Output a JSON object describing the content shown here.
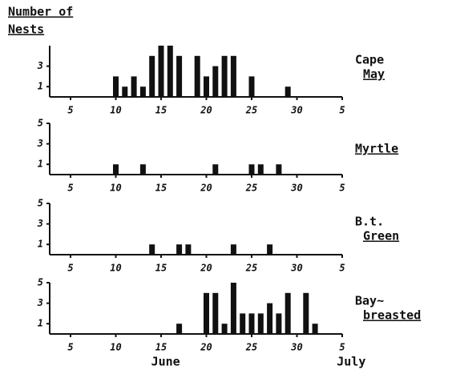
{
  "chart_data": [
    {
      "type": "bar",
      "ylabel": [
        "Number of",
        "Nests"
      ],
      "label": [
        "Cape",
        "May"
      ],
      "color": "#111111",
      "x": [
        10,
        11,
        12,
        13,
        14,
        15,
        16,
        17,
        19,
        20,
        21,
        22,
        23,
        25,
        29
      ],
      "values": [
        2,
        1,
        2,
        1,
        4,
        5,
        5,
        4,
        4,
        2,
        3,
        4,
        4,
        2,
        1
      ],
      "xlim": [
        2.7,
        35
      ],
      "xticks": [
        5,
        10,
        15,
        20,
        25,
        30,
        {
          "value": 35,
          "label": "5"
        }
      ],
      "ylim": [
        0,
        5
      ],
      "yticks": [
        1,
        3
      ]
    },
    {
      "type": "bar",
      "label": [
        "Myrtle"
      ],
      "color": "#111111",
      "x": [
        10,
        13,
        21,
        25,
        26,
        28
      ],
      "values": [
        1,
        1,
        1,
        1,
        1,
        1
      ],
      "xlim": [
        2.7,
        35
      ],
      "xticks": [
        5,
        10,
        15,
        20,
        25,
        30,
        {
          "value": 35,
          "label": "5"
        }
      ],
      "ylim": [
        0,
        5
      ],
      "yticks": [
        1,
        3,
        5
      ]
    },
    {
      "type": "bar",
      "label": [
        "B.t.",
        "Green"
      ],
      "color": "#111111",
      "x": [
        14,
        17,
        18,
        23,
        27
      ],
      "values": [
        1,
        1,
        1,
        1,
        1
      ],
      "xlim": [
        2.7,
        35
      ],
      "xticks": [
        5,
        10,
        15,
        20,
        25,
        30,
        {
          "value": 35,
          "label": "5"
        }
      ],
      "ylim": [
        0,
        5
      ],
      "yticks": [
        1,
        3,
        5
      ]
    },
    {
      "type": "bar",
      "label": [
        "Bay~",
        "breasted"
      ],
      "color": "#111111",
      "x": [
        17,
        20,
        21,
        22,
        23,
        24,
        25,
        26,
        27,
        28,
        29,
        31,
        32
      ],
      "values": [
        1,
        4,
        4,
        1,
        5,
        2,
        2,
        2,
        3,
        2,
        4,
        4,
        1
      ],
      "xlim": [
        2.7,
        35
      ],
      "xticks": [
        5,
        10,
        15,
        20,
        25,
        30,
        {
          "value": 35,
          "label": "5"
        }
      ],
      "ylim": [
        0,
        5
      ],
      "yticks": [
        1,
        3,
        5
      ],
      "xlabels": [
        "June",
        "July"
      ]
    }
  ]
}
